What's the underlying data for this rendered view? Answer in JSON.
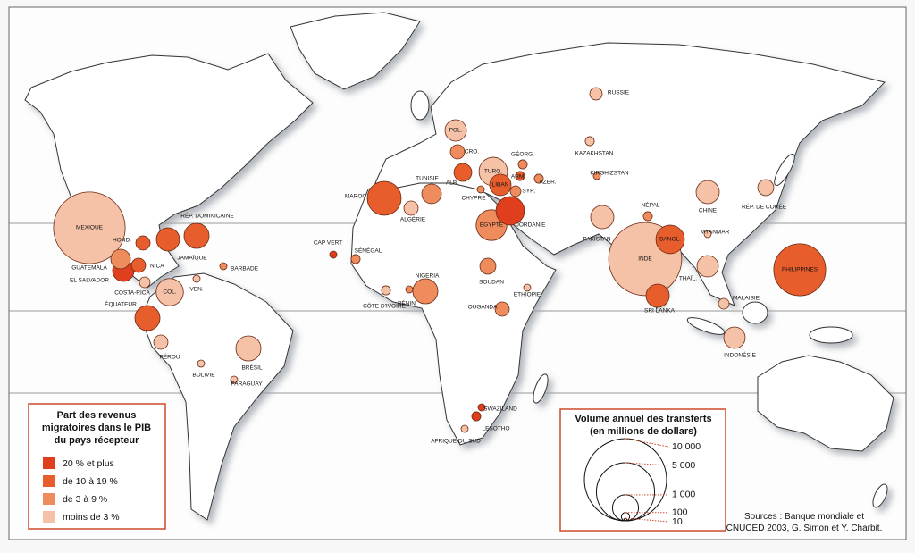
{
  "map": {
    "share_legend": {
      "title_lines": [
        "Part des revenus",
        "migratoires dans le PIB",
        "du pays récepteur"
      ],
      "classes": [
        {
          "label": "20 % et plus",
          "color": "#df3f1c"
        },
        {
          "label": "de 10 à 19 %",
          "color": "#e75e2c"
        },
        {
          "label": "de 3 à 9 %",
          "color": "#ef8c5d"
        },
        {
          "label": "moins de 3 %",
          "color": "#f5c2a8"
        }
      ]
    },
    "volume_legend": {
      "title_lines": [
        "Volume annuel des transferts",
        "(en millions de dollars)"
      ],
      "sizes": [
        {
          "value": 10000,
          "label": "10 000"
        },
        {
          "value": 5000,
          "label": "5 000"
        },
        {
          "value": 1000,
          "label": "1 000"
        },
        100,
        10
      ]
    },
    "sources": [
      "Sources : Banque mondiale et",
      "CNUCED 2003, G. Simon et Y. Charbit."
    ],
    "countries": [
      {
        "label": "MEXIQUE",
        "volume": 7600,
        "class": 3
      },
      {
        "label": "RÉP. DOMINICAINE",
        "volume": 930,
        "class": 1
      },
      {
        "label": "HOND.",
        "volume": 300,
        "class": 1
      },
      {
        "label": "JAMAÏQUE",
        "volume": 800,
        "class": 1
      },
      {
        "label": "GUATEMALA",
        "volume": 570,
        "class": 2
      },
      {
        "label": "EL SALVADOR",
        "volume": 680,
        "class": 0
      },
      {
        "label": "NICA",
        "volume": 300,
        "class": 1
      },
      {
        "label": "COSTA-RICA",
        "volume": 170,
        "class": 3
      },
      {
        "label": "BARBADE",
        "volume": 76,
        "class": 2
      },
      {
        "label": "COL.",
        "volume": 1100,
        "class": 3
      },
      {
        "label": "VEN.",
        "volume": 76,
        "class": 3
      },
      {
        "label": "ÉQUATEUR",
        "volume": 930,
        "class": 1
      },
      {
        "label": "PÉROU",
        "volume": 300,
        "class": 3
      },
      {
        "label": "BOLIVIE",
        "volume": 76,
        "class": 3
      },
      {
        "label": "BRÉSIL",
        "volume": 930,
        "class": 3
      },
      {
        "label": "PARAGUAY",
        "volume": 76,
        "class": 3
      },
      {
        "label": "CAP VERT",
        "volume": 76,
        "class": 0
      },
      {
        "label": "MAROC",
        "volume": 1700,
        "class": 1
      },
      {
        "label": "ALGÉRIE",
        "volume": 300,
        "class": 3
      },
      {
        "label": "TUNISIE",
        "volume": 570,
        "class": 2
      },
      {
        "label": "SÉNÉGAL",
        "volume": 120,
        "class": 2
      },
      {
        "label": "CÔTE D'IVOIRE",
        "volume": 120,
        "class": 3
      },
      {
        "label": "BÉNIN",
        "volume": 76,
        "class": 2
      },
      {
        "label": "NIGERIA",
        "volume": 930,
        "class": 2
      },
      {
        "label": "SOUDAN",
        "volume": 380,
        "class": 2
      },
      {
        "label": "ÉTHIOPIE",
        "volume": 76,
        "class": 3
      },
      {
        "label": "OUGANDA",
        "volume": 300,
        "class": 2
      },
      {
        "label": "SWAZILAND",
        "volume": 76,
        "class": 0
      },
      {
        "label": "LESOTHO",
        "volume": 120,
        "class": 0
      },
      {
        "label": "AFRIQUE DU SUD",
        "volume": 76,
        "class": 3
      },
      {
        "label": "POL.",
        "volume": 680,
        "class": 3
      },
      {
        "label": "CRO.",
        "volume": 300,
        "class": 2
      },
      {
        "label": "ALB.",
        "volume": 470,
        "class": 1
      },
      {
        "label": "TURQ.",
        "volume": 1200,
        "class": 3
      },
      {
        "label": "GÉORG.",
        "volume": 120,
        "class": 2
      },
      {
        "label": "ARM.",
        "volume": 120,
        "class": 1
      },
      {
        "label": "AZER.",
        "volume": 120,
        "class": 2
      },
      {
        "label": "LIBAN",
        "volume": 680,
        "class": 1
      },
      {
        "label": "CHYPRE",
        "volume": 76,
        "class": 2
      },
      {
        "label": "SYR.",
        "volume": 170,
        "class": 2
      },
      {
        "label": "ÉGYPTE",
        "volume": 1400,
        "class": 2
      },
      {
        "label": "JORDANIE",
        "volume": 1200,
        "class": 0
      },
      {
        "label": "RUSSIE",
        "volume": 230,
        "class": 3
      },
      {
        "label": "KAZAKHSTAN",
        "volume": 120,
        "class": 3
      },
      {
        "label": "KIRGHIZSTAN",
        "volume": 76,
        "class": 2
      },
      {
        "label": "PAKISTAN",
        "volume": 800,
        "class": 3
      },
      {
        "label": "NÉPAL",
        "volume": 120,
        "class": 2
      },
      {
        "label": "BANGL.",
        "volume": 1200,
        "class": 1
      },
      {
        "label": "INDE",
        "volume": 7900,
        "class": 3
      },
      {
        "label": "SRI LANKA",
        "volume": 800,
        "class": 1
      },
      {
        "label": "MYANMAR",
        "volume": 76,
        "class": 3
      },
      {
        "label": "CHINE",
        "volume": 800,
        "class": 3
      },
      {
        "label": "RÉP. DE CORÉE",
        "volume": 380,
        "class": 3
      },
      {
        "label": "THAÏL.",
        "volume": 680,
        "class": 3
      },
      {
        "label": "MALAISIE",
        "volume": 170,
        "class": 3
      },
      {
        "label": "PHILIPPINES",
        "volume": 4000,
        "class": 1
      },
      {
        "label": "INDONÉSIE",
        "volume": 680,
        "class": 3
      }
    ]
  }
}
